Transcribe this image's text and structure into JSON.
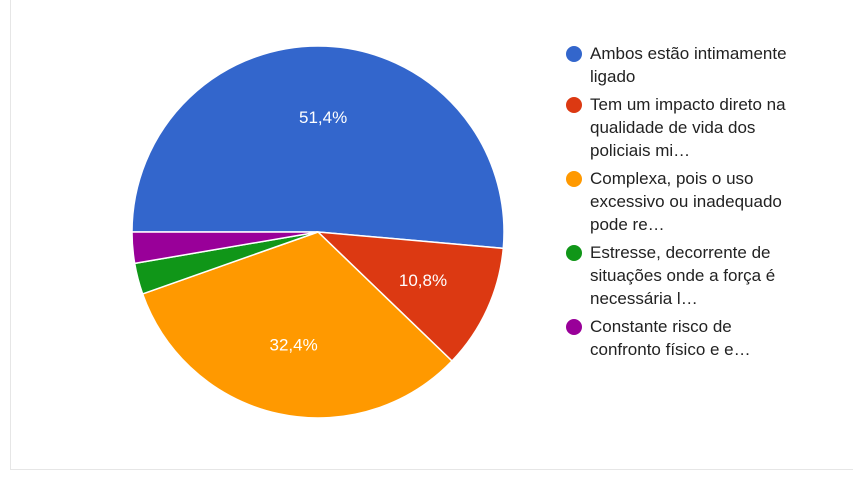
{
  "chart_data": {
    "type": "pie",
    "title": "",
    "slices": [
      {
        "label": "Ambos estão intimamente ligado",
        "value": 51.4,
        "display": "51,4%",
        "color": "#3366cc"
      },
      {
        "label": "Tem um impacto direto na qualidade de vida dos policiais mi…",
        "value": 10.8,
        "display": "10,8%",
        "color": "#dc3912"
      },
      {
        "label": "Complexa, pois o uso excessivo ou inadequado pode re…",
        "value": 32.4,
        "display": "32,4%",
        "color": "#ff9900"
      },
      {
        "label": "Estresse, decorrente de situações onde a força é necessária l…",
        "value": 2.7,
        "display": "",
        "color": "#109618"
      },
      {
        "label": "Constante risco de confronto físico e e…",
        "value": 2.7,
        "display": "",
        "color": "#990099"
      }
    ],
    "legend_position": "right"
  }
}
